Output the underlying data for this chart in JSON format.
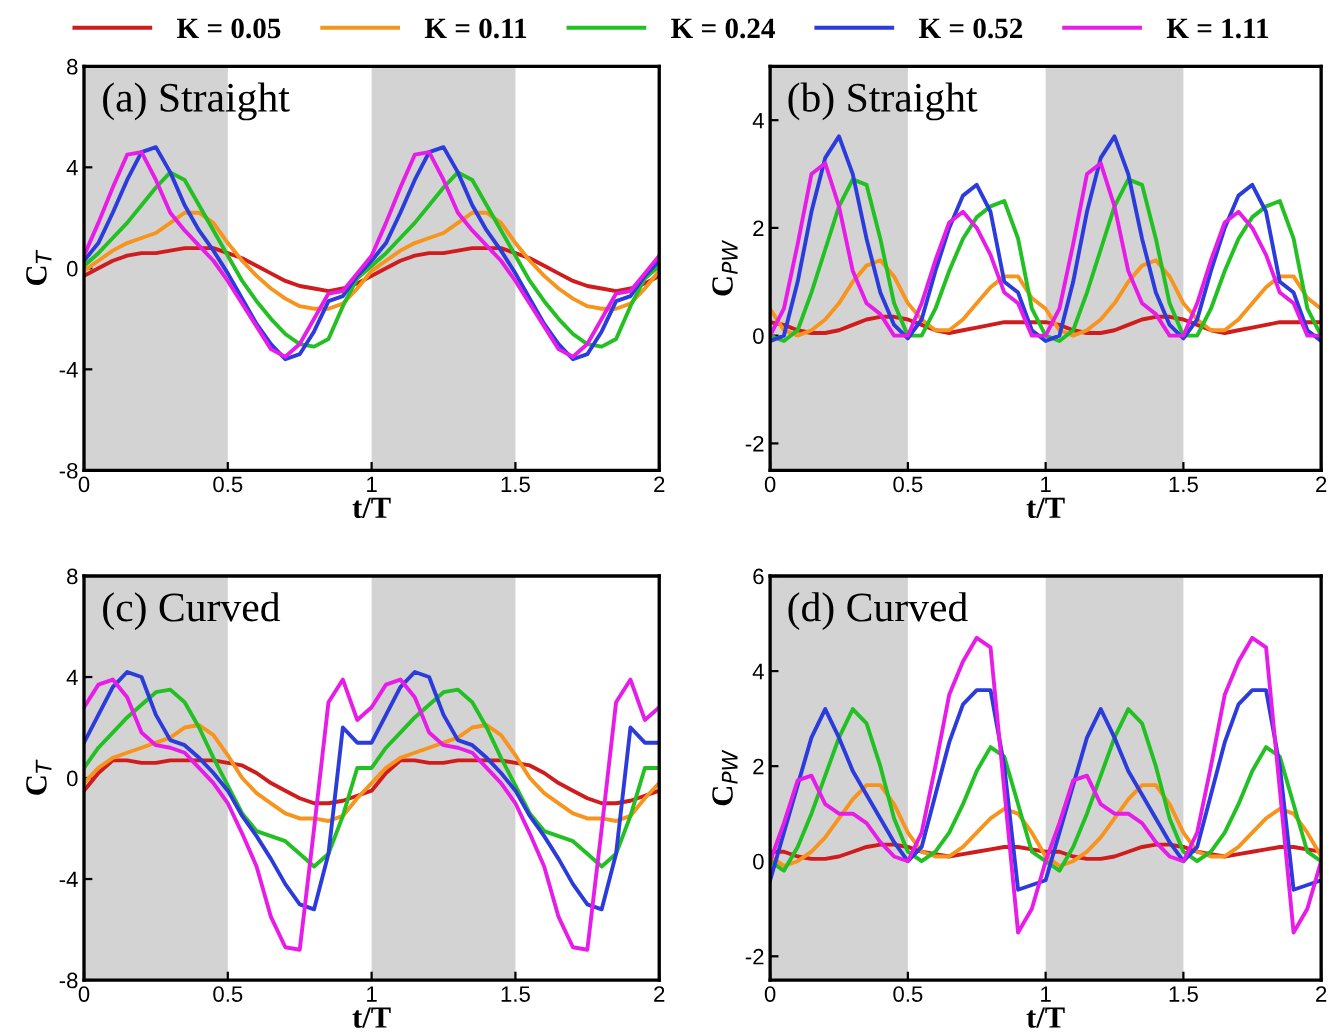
{
  "chart_data": [
    {
      "type": "line",
      "title": "(a) Straight",
      "xlabel": "t/T",
      "ylabel": "C$_{T}$",
      "legend": "top",
      "x": [
        0,
        0.05,
        0.1,
        0.15,
        0.2,
        0.25,
        0.3,
        0.35,
        0.4,
        0.45,
        0.5,
        0.55,
        0.6,
        0.65,
        0.7,
        0.75,
        0.8,
        0.85,
        0.9,
        0.95,
        1,
        1.05,
        1.1,
        1.15,
        1.2,
        1.25,
        1.3,
        1.35,
        1.4,
        1.45,
        1.5,
        1.55,
        1.6,
        1.65,
        1.7,
        1.75,
        1.8,
        1.85,
        1.9,
        1.95,
        2
      ],
      "xlim": [
        0,
        2
      ],
      "xticks": [
        0,
        0.5,
        1,
        1.5,
        2
      ],
      "ylim": [
        -8,
        8
      ],
      "yticks": [
        -8,
        -4,
        0,
        4,
        8
      ],
      "bands": [
        {
          "axis": "x",
          "from": 0,
          "to": 0.5,
          "color": "#d3d3d3"
        },
        {
          "axis": "x",
          "from": 1,
          "to": 1.5,
          "color": "#d3d3d3"
        }
      ],
      "series": [
        {
          "name": "K = 0.05",
          "color": "#d01c1c",
          "values": [
            -0.3,
            0,
            0.3,
            0.5,
            0.6,
            0.6,
            0.7,
            0.8,
            0.8,
            0.8,
            0.6,
            0.4,
            0.1,
            -0.2,
            -0.5,
            -0.7,
            -0.8,
            -0.9,
            -0.8,
            -0.6,
            -0.3,
            0,
            0.3,
            0.5,
            0.6,
            0.6,
            0.7,
            0.8,
            0.8,
            0.8,
            0.6,
            0.4,
            0.1,
            -0.2,
            -0.5,
            -0.7,
            -0.8,
            -0.9,
            -0.8,
            -0.6,
            -0.3
          ]
        },
        {
          "name": "K = 0.11",
          "color": "#f7941d",
          "values": [
            -0.1,
            0.3,
            0.7,
            1.0,
            1.2,
            1.4,
            1.8,
            2.2,
            2.2,
            1.8,
            1.0,
            0.3,
            -0.3,
            -0.8,
            -1.2,
            -1.5,
            -1.6,
            -1.6,
            -1.4,
            -0.8,
            -0.1,
            0.3,
            0.7,
            1.0,
            1.2,
            1.4,
            1.8,
            2.2,
            2.2,
            1.8,
            1.0,
            0.3,
            -0.3,
            -0.8,
            -1.2,
            -1.5,
            -1.6,
            -1.6,
            -1.4,
            -0.8,
            -0.1
          ]
        },
        {
          "name": "K = 0.24",
          "color": "#22c022",
          "values": [
            0.1,
            0.6,
            1.2,
            1.8,
            2.5,
            3.2,
            3.8,
            3.5,
            2.5,
            1.5,
            0.5,
            -0.5,
            -1.3,
            -2.0,
            -2.6,
            -3.0,
            -3.1,
            -2.8,
            -1.5,
            -0.4,
            0.1,
            0.6,
            1.2,
            1.8,
            2.5,
            3.2,
            3.8,
            3.5,
            2.5,
            1.5,
            0.5,
            -0.5,
            -1.3,
            -2.0,
            -2.6,
            -3.0,
            -3.1,
            -2.8,
            -1.5,
            -0.4,
            0.1
          ]
        },
        {
          "name": "K = 0.52",
          "color": "#2b3bdc",
          "values": [
            0.3,
            1.0,
            2.2,
            3.5,
            4.6,
            4.8,
            3.8,
            2.5,
            1.5,
            0.7,
            -0.2,
            -1.2,
            -2.2,
            -3.0,
            -3.6,
            -3.4,
            -2.5,
            -1.3,
            -1.1,
            -0.3,
            0.3,
            1.0,
            2.2,
            3.5,
            4.6,
            4.8,
            3.8,
            2.5,
            1.5,
            0.7,
            -0.2,
            -1.2,
            -2.2,
            -3.0,
            -3.6,
            -3.4,
            -2.5,
            -1.3,
            -1.1,
            -0.3,
            0.3
          ]
        },
        {
          "name": "K = 1.11",
          "color": "#e81ce8",
          "values": [
            0.5,
            1.8,
            3.2,
            4.5,
            4.6,
            3.5,
            2.2,
            1.5,
            0.9,
            0.3,
            -0.5,
            -1.4,
            -2.3,
            -3.2,
            -3.5,
            -3.0,
            -2.0,
            -1.0,
            -0.9,
            -0.2,
            0.5,
            1.8,
            3.2,
            4.5,
            4.6,
            3.5,
            2.2,
            1.5,
            0.9,
            0.3,
            -0.5,
            -1.4,
            -2.3,
            -3.2,
            -3.5,
            -3.0,
            -2.0,
            -1.0,
            -0.9,
            -0.2,
            0.5
          ]
        }
      ]
    },
    {
      "type": "line",
      "title": "(b) Straight",
      "xlabel": "t/T",
      "ylabel": "C$_{PW}$",
      "x": [
        0,
        0.05,
        0.1,
        0.15,
        0.2,
        0.25,
        0.3,
        0.35,
        0.4,
        0.45,
        0.5,
        0.55,
        0.6,
        0.65,
        0.7,
        0.75,
        0.8,
        0.85,
        0.9,
        0.95,
        1,
        1.05,
        1.1,
        1.15,
        1.2,
        1.25,
        1.3,
        1.35,
        1.4,
        1.45,
        1.5,
        1.55,
        1.6,
        1.65,
        1.7,
        1.75,
        1.8,
        1.85,
        1.9,
        1.95,
        2
      ],
      "xlim": [
        0,
        2
      ],
      "xticks": [
        0,
        0.5,
        1,
        1.5,
        2
      ],
      "ylim": [
        -2.5,
        5
      ],
      "yticks": [
        -2,
        0,
        2,
        4
      ],
      "bands": [
        {
          "axis": "x",
          "from": 0,
          "to": 0.5,
          "color": "#d3d3d3"
        },
        {
          "axis": "x",
          "from": 1,
          "to": 1.5,
          "color": "#d3d3d3"
        }
      ],
      "series": [
        {
          "color": "#d01c1c",
          "values": [
            0.25,
            0.2,
            0.1,
            0.05,
            0.05,
            0.1,
            0.2,
            0.3,
            0.35,
            0.35,
            0.3,
            0.2,
            0.1,
            0.05,
            0.1,
            0.15,
            0.2,
            0.25,
            0.25,
            0.25,
            0.25,
            0.2,
            0.1,
            0.05,
            0.05,
            0.1,
            0.2,
            0.3,
            0.35,
            0.35,
            0.3,
            0.2,
            0.1,
            0.05,
            0.1,
            0.15,
            0.2,
            0.25,
            0.25,
            0.25,
            0.25
          ]
        },
        {
          "color": "#f7941d",
          "values": [
            0.5,
            0.1,
            0.0,
            0.1,
            0.3,
            0.6,
            1.0,
            1.3,
            1.4,
            1.1,
            0.6,
            0.3,
            0.1,
            0.1,
            0.3,
            0.6,
            0.9,
            1.1,
            1.1,
            0.7,
            0.5,
            0.1,
            0.0,
            0.1,
            0.3,
            0.6,
            1.0,
            1.3,
            1.4,
            1.1,
            0.6,
            0.3,
            0.1,
            0.1,
            0.3,
            0.6,
            0.9,
            1.1,
            1.1,
            0.7,
            0.5
          ]
        },
        {
          "color": "#22c022",
          "values": [
            0.0,
            -0.1,
            0.1,
            0.8,
            1.6,
            2.4,
            2.9,
            2.8,
            1.8,
            0.6,
            0.0,
            0.0,
            0.5,
            1.2,
            1.8,
            2.2,
            2.4,
            2.5,
            1.8,
            0.5,
            0.0,
            -0.1,
            0.1,
            0.8,
            1.6,
            2.4,
            2.9,
            2.8,
            1.8,
            0.6,
            0.0,
            0.0,
            0.5,
            1.2,
            1.8,
            2.2,
            2.4,
            2.5,
            1.8,
            0.5,
            0.0
          ]
        },
        {
          "color": "#2b3bdc",
          "values": [
            -0.1,
            0.0,
            1.0,
            2.3,
            3.3,
            3.7,
            3.0,
            1.8,
            0.8,
            0.2,
            -0.05,
            0.3,
            1.2,
            2.0,
            2.6,
            2.8,
            2.3,
            1.0,
            0.8,
            0.1,
            -0.1,
            0.0,
            1.0,
            2.3,
            3.3,
            3.7,
            3.0,
            1.8,
            0.8,
            0.2,
            -0.05,
            0.3,
            1.2,
            2.0,
            2.6,
            2.8,
            2.3,
            1.0,
            0.8,
            0.1,
            -0.1
          ]
        },
        {
          "color": "#e81ce8",
          "values": [
            0.0,
            0.5,
            1.7,
            3.0,
            3.2,
            2.4,
            1.2,
            0.6,
            0.4,
            0.0,
            0.0,
            0.6,
            1.4,
            2.1,
            2.3,
            2.0,
            1.5,
            0.8,
            0.6,
            0.0,
            0.0,
            0.5,
            1.7,
            3.0,
            3.2,
            2.4,
            1.2,
            0.6,
            0.4,
            0.0,
            0.0,
            0.6,
            1.4,
            2.1,
            2.3,
            2.0,
            1.5,
            0.8,
            0.6,
            0.0,
            0.0
          ]
        }
      ]
    },
    {
      "type": "line",
      "title": "(c) Curved",
      "xlabel": "t/T",
      "ylabel": "C$_{T}$",
      "x": [
        0,
        0.05,
        0.1,
        0.15,
        0.2,
        0.25,
        0.3,
        0.35,
        0.4,
        0.45,
        0.5,
        0.55,
        0.6,
        0.65,
        0.7,
        0.75,
        0.8,
        0.85,
        0.9,
        0.95,
        1,
        1.05,
        1.1,
        1.15,
        1.2,
        1.25,
        1.3,
        1.35,
        1.4,
        1.45,
        1.5,
        1.55,
        1.6,
        1.65,
        1.7,
        1.75,
        1.8,
        1.85,
        1.9,
        1.95,
        2
      ],
      "xlim": [
        0,
        2
      ],
      "xticks": [
        0,
        0.5,
        1,
        1.5,
        2
      ],
      "ylim": [
        -8,
        8
      ],
      "yticks": [
        -8,
        -4,
        0,
        4,
        8
      ],
      "bands": [
        {
          "axis": "x",
          "from": 0,
          "to": 0.5,
          "color": "#d3d3d3"
        },
        {
          "axis": "x",
          "from": 1,
          "to": 1.5,
          "color": "#d3d3d3"
        }
      ],
      "series": [
        {
          "color": "#d01c1c",
          "values": [
            -0.5,
            0.2,
            0.7,
            0.7,
            0.6,
            0.6,
            0.7,
            0.7,
            0.7,
            0.7,
            0.6,
            0.5,
            0.2,
            -0.2,
            -0.5,
            -0.8,
            -1.0,
            -1.0,
            -0.9,
            -0.7,
            -0.5,
            0.2,
            0.7,
            0.7,
            0.6,
            0.6,
            0.7,
            0.7,
            0.7,
            0.7,
            0.6,
            0.5,
            0.2,
            -0.2,
            -0.5,
            -0.8,
            -1.0,
            -1.0,
            -0.9,
            -0.7,
            -0.5
          ]
        },
        {
          "color": "#f7941d",
          "values": [
            -0.2,
            0.4,
            0.8,
            1.0,
            1.2,
            1.4,
            1.6,
            2.0,
            2.1,
            1.7,
            0.9,
            0.0,
            -0.6,
            -1.0,
            -1.4,
            -1.6,
            -1.6,
            -1.7,
            -1.5,
            -0.8,
            -0.2,
            0.4,
            0.8,
            1.0,
            1.2,
            1.4,
            1.6,
            2.0,
            2.1,
            1.7,
            0.9,
            0.0,
            -0.6,
            -1.0,
            -1.4,
            -1.6,
            -1.6,
            -1.7,
            -1.5,
            -0.8,
            -0.2
          ]
        },
        {
          "color": "#22c022",
          "values": [
            0.4,
            1.2,
            1.8,
            2.4,
            2.9,
            3.4,
            3.5,
            3.0,
            2.0,
            0.8,
            -0.3,
            -1.4,
            -2.1,
            -2.3,
            -2.5,
            -3.0,
            -3.5,
            -3.0,
            -1.5,
            0.4,
            0.4,
            1.2,
            1.8,
            2.4,
            2.9,
            3.4,
            3.5,
            3.0,
            2.0,
            0.8,
            -0.3,
            -1.4,
            -2.1,
            -2.3,
            -2.5,
            -3.0,
            -3.5,
            -3.0,
            -1.5,
            0.4,
            0.4
          ]
        },
        {
          "color": "#2b3bdc",
          "values": [
            1.4,
            2.5,
            3.6,
            4.2,
            4.0,
            2.5,
            1.5,
            1.3,
            0.8,
            0.2,
            -0.5,
            -1.5,
            -2.3,
            -3.2,
            -4.2,
            -5.0,
            -5.2,
            -3.0,
            2.0,
            1.4,
            1.4,
            2.5,
            3.6,
            4.2,
            4.0,
            2.5,
            1.5,
            1.3,
            0.8,
            0.2,
            -0.5,
            -1.5,
            -2.3,
            -3.2,
            -4.2,
            -5.0,
            -5.2,
            -3.0,
            2.0,
            1.4,
            1.4
          ]
        },
        {
          "color": "#e81ce8",
          "values": [
            2.8,
            3.7,
            3.9,
            3.2,
            1.8,
            1.3,
            1.2,
            1.0,
            0.4,
            -0.2,
            -1.0,
            -2.2,
            -3.5,
            -5.5,
            -6.7,
            -6.8,
            -2.0,
            3.0,
            3.9,
            2.3,
            2.8,
            3.7,
            3.9,
            3.2,
            1.8,
            1.3,
            1.2,
            1.0,
            0.4,
            -0.2,
            -1.0,
            -2.2,
            -3.5,
            -5.5,
            -6.7,
            -6.8,
            -2.0,
            3.0,
            3.9,
            2.3,
            2.8
          ]
        }
      ]
    },
    {
      "type": "line",
      "title": "(d) Curved",
      "xlabel": "t/T",
      "ylabel": "C$_{PW}$",
      "x": [
        0,
        0.05,
        0.1,
        0.15,
        0.2,
        0.25,
        0.3,
        0.35,
        0.4,
        0.45,
        0.5,
        0.55,
        0.6,
        0.65,
        0.7,
        0.75,
        0.8,
        0.85,
        0.9,
        0.95,
        1,
        1.05,
        1.1,
        1.15,
        1.2,
        1.25,
        1.3,
        1.35,
        1.4,
        1.45,
        1.5,
        1.55,
        1.6,
        1.65,
        1.7,
        1.75,
        1.8,
        1.85,
        1.9,
        1.95,
        2
      ],
      "xlim": [
        0,
        2
      ],
      "xticks": [
        0,
        0.5,
        1,
        1.5,
        2
      ],
      "ylim": [
        -2.5,
        6
      ],
      "yticks": [
        -2,
        0,
        2,
        4,
        6
      ],
      "bands": [
        {
          "axis": "x",
          "from": 0,
          "to": 0.5,
          "color": "#d3d3d3"
        },
        {
          "axis": "x",
          "from": 1,
          "to": 1.5,
          "color": "#d3d3d3"
        }
      ],
      "series": [
        {
          "color": "#d01c1c",
          "values": [
            0.2,
            0.2,
            0.1,
            0.05,
            0.05,
            0.1,
            0.2,
            0.3,
            0.35,
            0.35,
            0.3,
            0.2,
            0.15,
            0.1,
            0.15,
            0.2,
            0.25,
            0.3,
            0.3,
            0.25,
            0.2,
            0.2,
            0.1,
            0.05,
            0.05,
            0.1,
            0.2,
            0.3,
            0.35,
            0.35,
            0.3,
            0.2,
            0.15,
            0.1,
            0.15,
            0.2,
            0.25,
            0.3,
            0.3,
            0.25,
            0.2
          ]
        },
        {
          "color": "#f7941d",
          "values": [
            0.1,
            -0.1,
            0.0,
            0.2,
            0.5,
            0.9,
            1.3,
            1.6,
            1.6,
            1.2,
            0.6,
            0.2,
            0.1,
            0.1,
            0.3,
            0.6,
            0.9,
            1.1,
            1.0,
            0.6,
            0.1,
            -0.1,
            0.0,
            0.2,
            0.5,
            0.9,
            1.3,
            1.6,
            1.6,
            1.2,
            0.6,
            0.2,
            0.1,
            0.1,
            0.3,
            0.6,
            0.9,
            1.1,
            1.0,
            0.6,
            0.1
          ]
        },
        {
          "color": "#22c022",
          "values": [
            0.0,
            -0.2,
            0.3,
            1.0,
            1.8,
            2.6,
            3.2,
            2.9,
            2.0,
            0.9,
            0.2,
            0.0,
            0.2,
            0.6,
            1.2,
            1.9,
            2.4,
            2.2,
            1.2,
            0.2,
            0.0,
            -0.2,
            0.3,
            1.0,
            1.8,
            2.6,
            3.2,
            2.9,
            2.0,
            0.9,
            0.2,
            0.0,
            0.2,
            0.6,
            1.2,
            1.9,
            2.4,
            2.2,
            1.2,
            0.2,
            0.0
          ]
        },
        {
          "color": "#2b3bdc",
          "values": [
            -0.4,
            0.6,
            1.6,
            2.6,
            3.2,
            2.6,
            1.9,
            1.4,
            0.9,
            0.4,
            0.0,
            0.3,
            1.4,
            2.5,
            3.3,
            3.6,
            3.6,
            2.0,
            -0.6,
            -0.5,
            -0.4,
            0.6,
            1.6,
            2.6,
            3.2,
            2.6,
            1.9,
            1.4,
            0.9,
            0.4,
            0.0,
            0.3,
            1.4,
            2.5,
            3.3,
            3.6,
            3.6,
            2.0,
            -0.6,
            -0.5,
            -0.4
          ]
        },
        {
          "color": "#e81ce8",
          "values": [
            0.0,
            0.8,
            1.7,
            1.8,
            1.2,
            1.0,
            1.0,
            0.8,
            0.4,
            0.1,
            0.0,
            0.6,
            2.0,
            3.5,
            4.2,
            4.7,
            4.5,
            1.5,
            -1.5,
            -1.0,
            0.0,
            0.8,
            1.7,
            1.8,
            1.2,
            1.0,
            1.0,
            0.8,
            0.4,
            0.1,
            0.0,
            0.6,
            2.0,
            3.5,
            4.2,
            4.7,
            4.5,
            1.5,
            -1.5,
            -1.0,
            0.0
          ]
        }
      ]
    }
  ]
}
